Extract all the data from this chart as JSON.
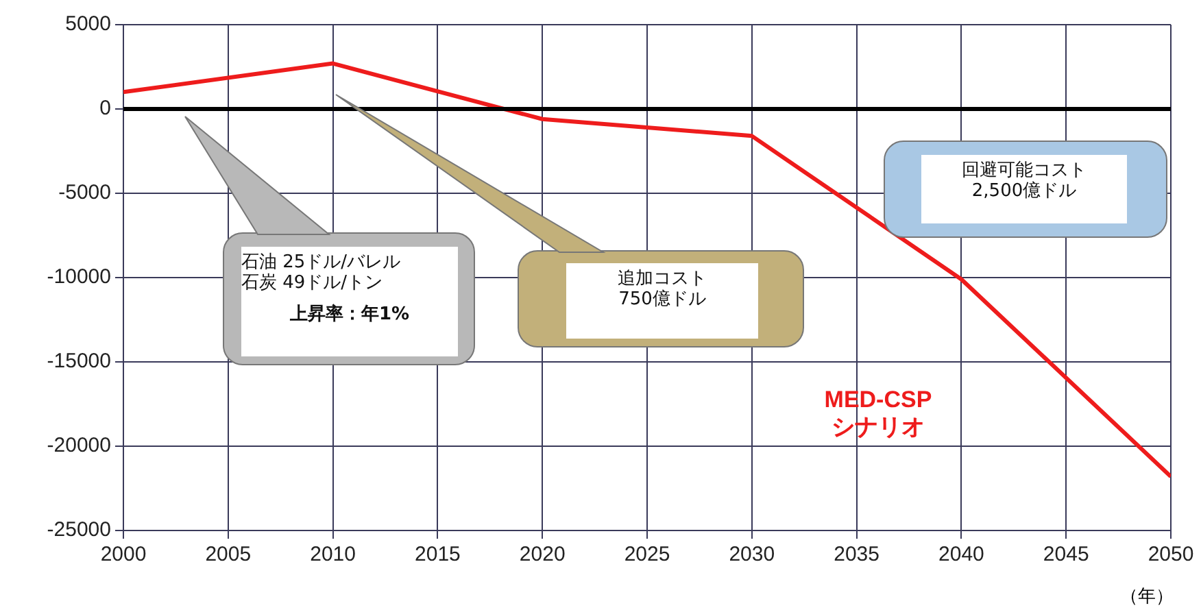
{
  "chart_data": {
    "type": "line",
    "xlabel": "（年）",
    "x": [
      2000,
      2010,
      2020,
      2030,
      2040,
      2050
    ],
    "series": [
      {
        "name": "MED-CSP\nシナリオ",
        "color": "#ee1c1c",
        "values": [
          1000,
          2700,
          -600,
          -1600,
          -10100,
          -21800
        ]
      }
    ],
    "xlim": [
      2000,
      2050
    ],
    "xticks": [
      2000,
      2005,
      2010,
      2015,
      2020,
      2025,
      2030,
      2035,
      2040,
      2045,
      2050
    ],
    "ylim": [
      -25000,
      5000
    ],
    "yticks": [
      -25000,
      -20000,
      -15000,
      -10000,
      -5000,
      0,
      5000
    ],
    "grid": true,
    "marker": "none",
    "line_style": "solid",
    "legend": false,
    "ref_lines": [
      {
        "axis": "y",
        "value": 0,
        "color": "#000000"
      }
    ],
    "annotations": [
      "石油 25ドル/バレル",
      "石炭 49ドル/トン",
      "上昇率：年1%",
      "追加コスト\n750億ドル",
      "回避可能コスト\n2,500億ドル"
    ]
  }
}
